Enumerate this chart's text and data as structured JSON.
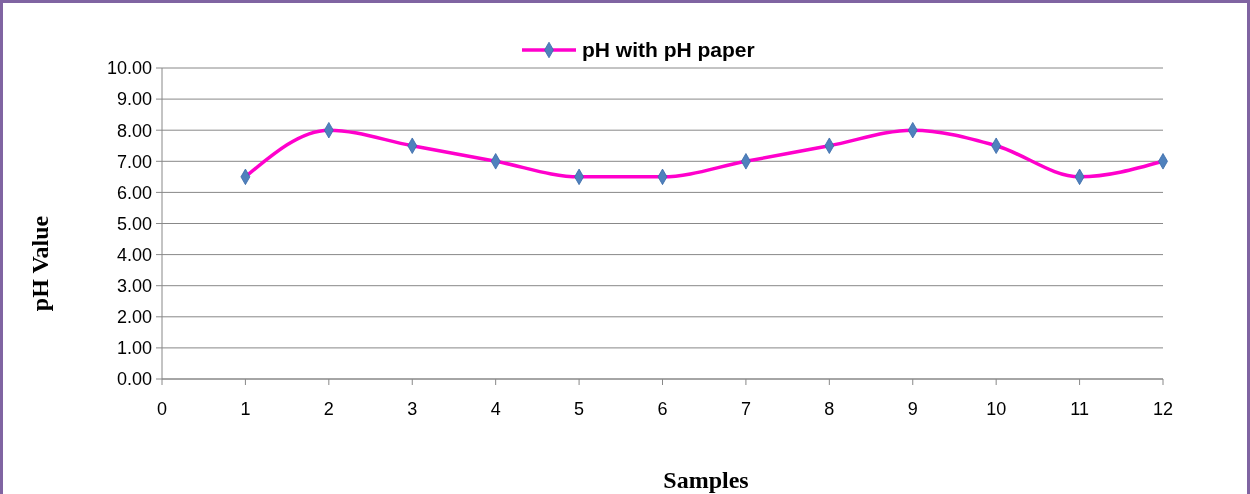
{
  "chart_data": {
    "type": "line",
    "xlabel": "Samples",
    "ylabel": "pH Value",
    "x": [
      1,
      2,
      3,
      4,
      5,
      6,
      7,
      8,
      9,
      10,
      11,
      12
    ],
    "series": [
      {
        "name": "pH with pH paper",
        "color": "#ff00cc",
        "values": [
          6.5,
          8,
          7.5,
          7,
          6.5,
          6.5,
          7,
          7.5,
          8,
          7.5,
          6.5,
          7
        ]
      }
    ],
    "xlim": [
      0,
      12
    ],
    "xticks": [
      0,
      1,
      2,
      3,
      4,
      5,
      6,
      7,
      8,
      9,
      10,
      11,
      12
    ],
    "ylim": [
      0,
      10
    ],
    "yticks": [
      {
        "value": 0,
        "label": "0.00"
      },
      {
        "value": 1,
        "label": "1.00"
      },
      {
        "value": 2,
        "label": "2.00"
      },
      {
        "value": 3,
        "label": "3.00"
      },
      {
        "value": 4,
        "label": "4.00"
      },
      {
        "value": 5,
        "label": "5.00"
      },
      {
        "value": 6,
        "label": "6.00"
      },
      {
        "value": 7,
        "label": "7.00"
      },
      {
        "value": 8,
        "label": "8.00"
      },
      {
        "value": 9,
        "label": "9.00"
      },
      {
        "value": 10,
        "label": "10.00"
      }
    ],
    "grid": "y",
    "legend": "top",
    "marker": "diamond",
    "line_style": "solid"
  }
}
